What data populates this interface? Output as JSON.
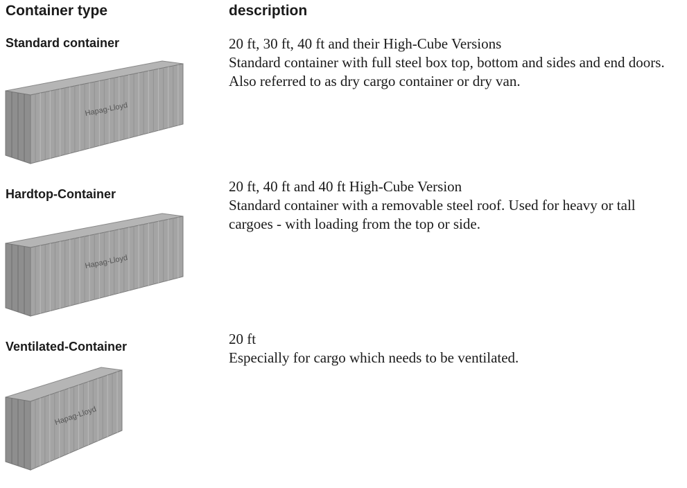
{
  "header": {
    "type": "Container type",
    "description": "description"
  },
  "rows": [
    {
      "name": "Standard container",
      "logo": "Hapag-Lloyd",
      "sizes": "20 ft, 30 ft, 40 ft and their High-Cube Versions",
      "description": "Standard container with full steel box top, bottom and sides and end doors. Also referred to as dry cargo container or dry van."
    },
    {
      "name": "Hardtop-Container",
      "logo": "Hapag-Lloyd",
      "sizes": "20 ft, 40 ft and 40 ft High-Cube Version",
      "description": "Standard container with a removable steel roof. Used for heavy or tall cargoes - with loading from the top or side."
    },
    {
      "name": "Ventilated-Container",
      "logo": "Hapag-Lloyd",
      "sizes": "20 ft",
      "description": "Especially for cargo which needs to be ventilated."
    }
  ]
}
